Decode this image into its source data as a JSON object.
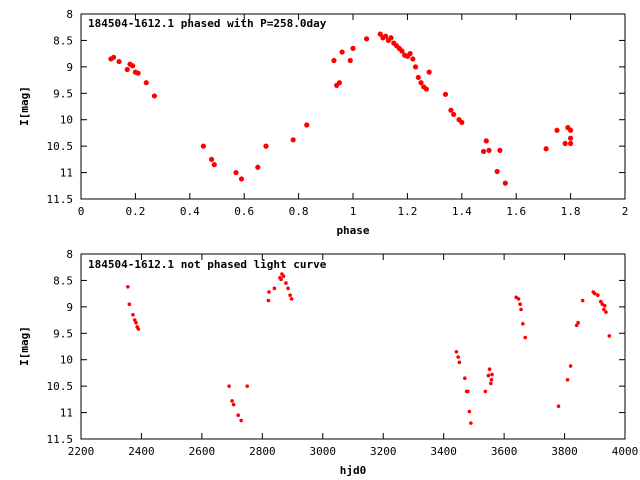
{
  "chart_data": [
    {
      "type": "scatter",
      "title": "184504-1612.1 phased with P=258.0day",
      "xlabel": "phase",
      "ylabel": "I[mag]",
      "xlim": [
        0,
        2
      ],
      "ylim": [
        11.5,
        8
      ],
      "y_inverted": true,
      "grid": false,
      "marker_color": "#ff0000",
      "x_ticks": [
        "0",
        "0.2",
        "0.4",
        "0.6",
        "0.8",
        "1",
        "1.2",
        "1.4",
        "1.6",
        "1.8",
        "2"
      ],
      "y_ticks": [
        "8",
        "8.5",
        "9",
        "9.5",
        "10",
        "10.5",
        "11",
        "11.5"
      ],
      "x": [
        0.11,
        0.12,
        0.14,
        0.17,
        0.18,
        0.19,
        0.2,
        0.21,
        0.24,
        0.27,
        0.45,
        0.48,
        0.49,
        0.57,
        0.59,
        0.65,
        0.68,
        0.78,
        0.83,
        0.93,
        0.94,
        0.95,
        0.96,
        0.99,
        1.0,
        1.05,
        1.1,
        1.11,
        1.12,
        1.13,
        1.14,
        1.15,
        1.16,
        1.17,
        1.18,
        1.19,
        1.2,
        1.21,
        1.22,
        1.23,
        1.24,
        1.25,
        1.26,
        1.27,
        1.28,
        1.34,
        1.36,
        1.37,
        1.39,
        1.4,
        1.48,
        1.49,
        1.5,
        1.53,
        1.54,
        1.56,
        1.71,
        1.75,
        1.78,
        1.79,
        1.8,
        1.8,
        1.8
      ],
      "y": [
        8.85,
        8.82,
        8.9,
        9.05,
        8.95,
        8.98,
        9.1,
        9.12,
        9.3,
        9.55,
        10.5,
        10.75,
        10.85,
        11.0,
        11.12,
        10.9,
        10.5,
        10.38,
        10.1,
        8.88,
        9.35,
        9.3,
        8.72,
        8.88,
        8.65,
        8.47,
        8.38,
        8.45,
        8.42,
        8.5,
        8.45,
        8.55,
        8.6,
        8.65,
        8.7,
        8.78,
        8.8,
        8.75,
        8.85,
        9.0,
        9.2,
        9.3,
        9.38,
        9.42,
        9.1,
        9.52,
        9.82,
        9.9,
        10.0,
        10.05,
        10.6,
        10.4,
        10.58,
        10.98,
        10.58,
        11.2,
        10.55,
        10.2,
        10.45,
        10.15,
        10.2,
        10.35,
        10.45
      ]
    },
    {
      "type": "scatter",
      "title": "184504-1612.1 not phased light curve",
      "xlabel": "hjd0",
      "ylabel": "I[mag]",
      "xlim": [
        2200,
        4000
      ],
      "ylim": [
        11.5,
        8
      ],
      "y_inverted": true,
      "grid": false,
      "marker_color": "#ff0000",
      "x_ticks": [
        "2200",
        "2400",
        "2600",
        "2800",
        "3000",
        "3200",
        "3400",
        "3600",
        "3800",
        "4000"
      ],
      "y_ticks": [
        "8",
        "8.5",
        "9",
        "9.5",
        "10",
        "10.5",
        "11",
        "11.5"
      ],
      "x": [
        2355,
        2360,
        2372,
        2378,
        2382,
        2386,
        2390,
        2690,
        2700,
        2705,
        2720,
        2730,
        2750,
        2820,
        2822,
        2840,
        2858,
        2862,
        2865,
        2870,
        2878,
        2885,
        2892,
        2897,
        3442,
        3448,
        3452,
        3470,
        3476,
        3480,
        3485,
        3490,
        3538,
        3548,
        3552,
        3556,
        3558,
        3560,
        3640,
        3648,
        3653,
        3656,
        3662,
        3670,
        3780,
        3810,
        3820,
        3840,
        3845,
        3860,
        3895,
        3900,
        3910,
        3920,
        3925,
        3930,
        3933,
        3937,
        3948
      ],
      "y": [
        8.62,
        8.95,
        9.15,
        9.25,
        9.3,
        9.38,
        9.42,
        10.5,
        10.78,
        10.85,
        11.05,
        11.15,
        10.5,
        8.88,
        8.72,
        8.65,
        8.45,
        8.48,
        8.38,
        8.42,
        8.55,
        8.65,
        8.78,
        8.85,
        9.85,
        9.95,
        10.05,
        10.35,
        10.6,
        10.6,
        10.98,
        11.2,
        10.6,
        10.3,
        10.18,
        10.45,
        10.38,
        10.28,
        8.82,
        8.85,
        8.95,
        9.05,
        9.32,
        9.58,
        10.88,
        10.38,
        10.12,
        9.35,
        9.3,
        8.88,
        8.72,
        8.75,
        8.78,
        8.9,
        8.95,
        9.05,
        8.98,
        9.1,
        9.55
      ]
    }
  ]
}
